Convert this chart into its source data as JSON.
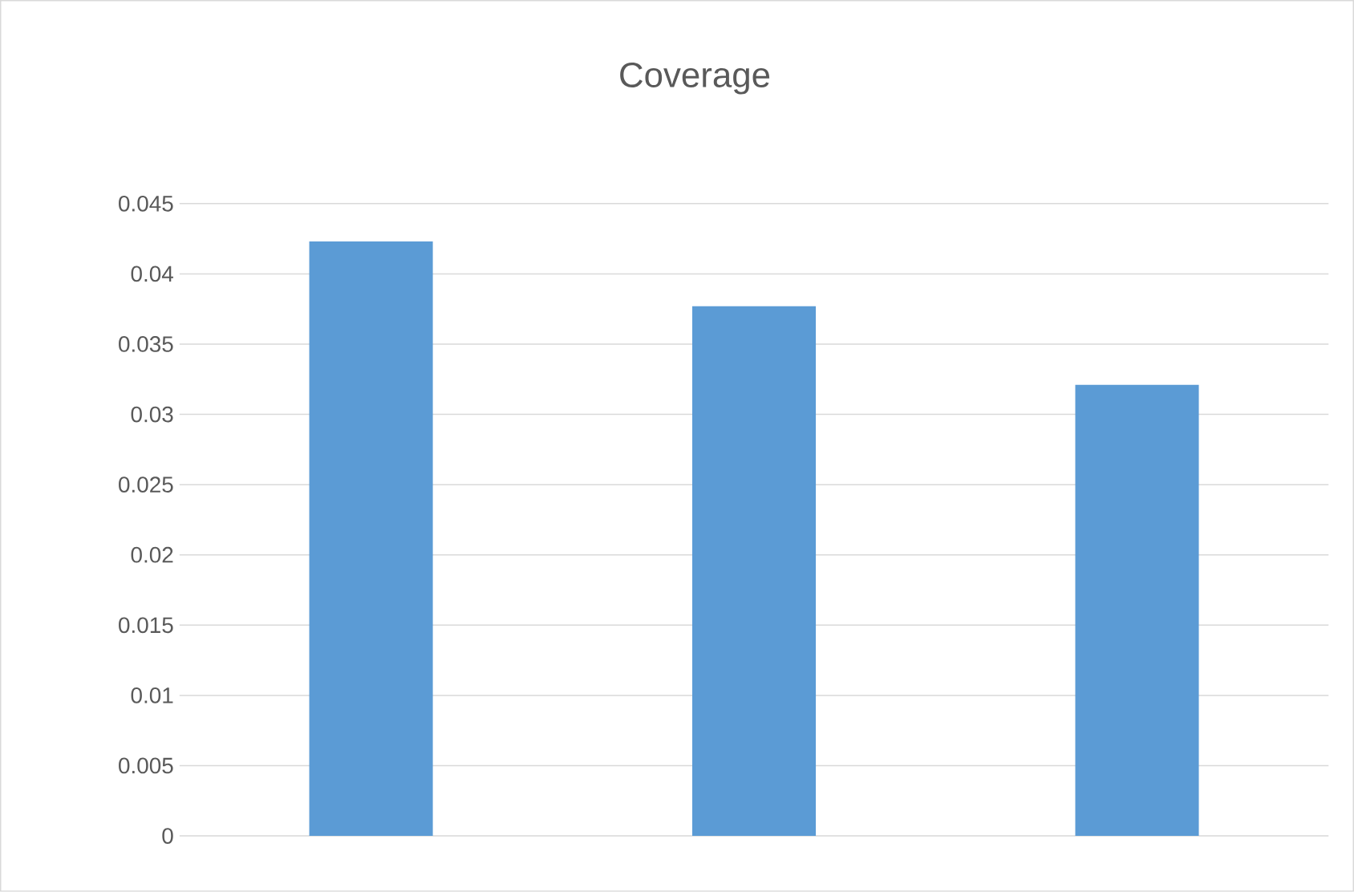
{
  "chart_data": {
    "type": "bar",
    "title": "Coverage",
    "categories": [
      null,
      null,
      null
    ],
    "values": [
      0.0423,
      0.0377,
      0.0321
    ],
    "color": "#5b9bd5",
    "ylim": [
      0,
      0.045
    ],
    "yticks": [
      0,
      0.005,
      0.01,
      0.015,
      0.02,
      0.025,
      0.03,
      0.035,
      0.04,
      0.045
    ],
    "grid": "y"
  }
}
